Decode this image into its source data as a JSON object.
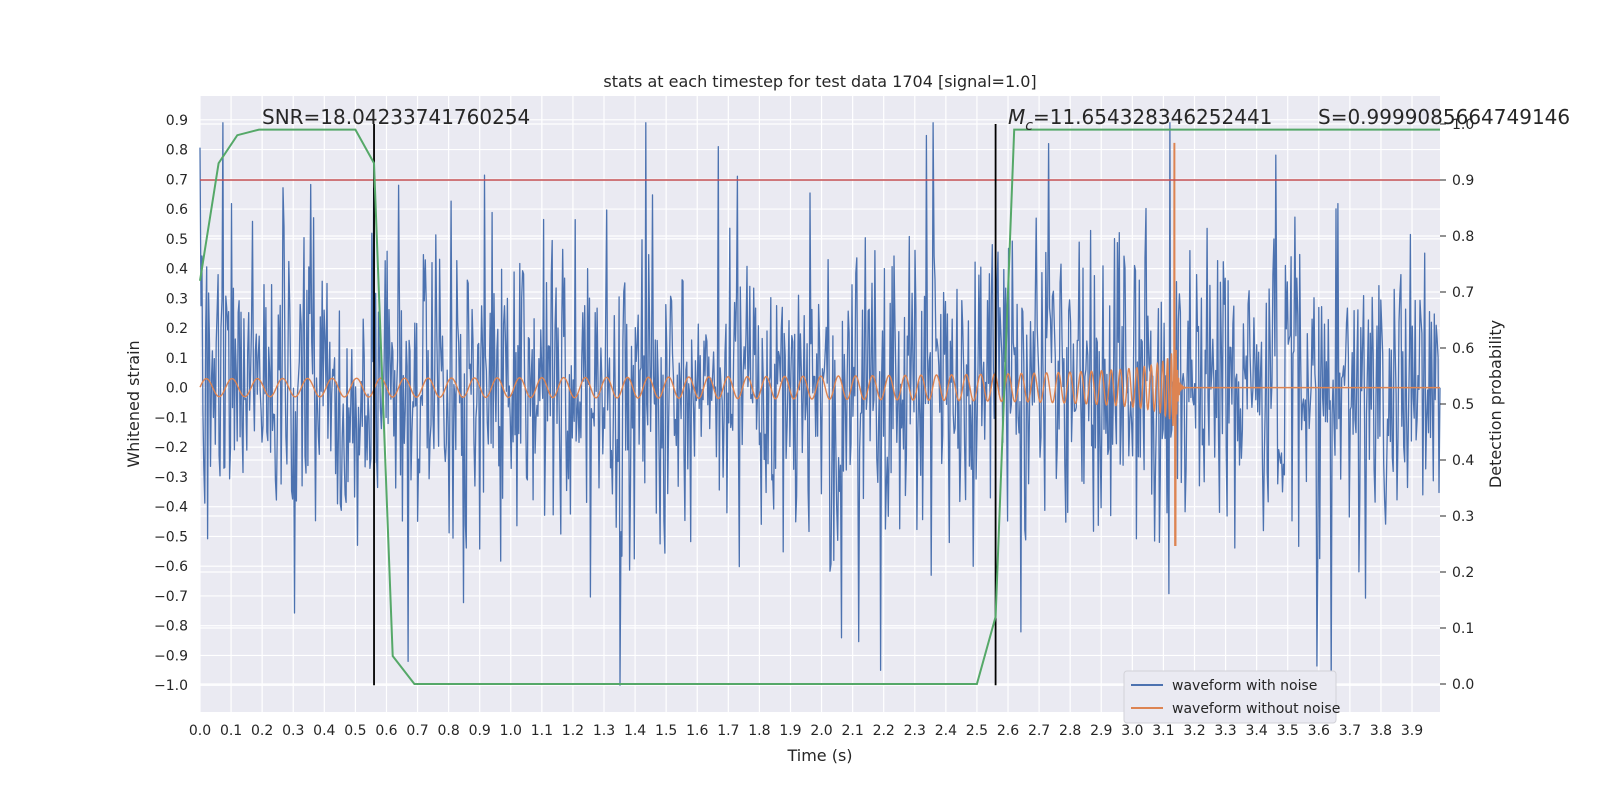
{
  "chart_data": {
    "type": "line",
    "title": "stats at each timestep for test data 1704 [signal=1.0]",
    "xlabel": "Time (s)",
    "ylabel": "Whitened strain",
    "y2label": "Detection probability",
    "xlim": [
      0.0,
      3.99
    ],
    "ylim": [
      -1.09,
      0.98
    ],
    "y2lim": [
      -0.05,
      1.05
    ],
    "x_ticks": [
      "0.0",
      "0.1",
      "0.2",
      "0.3",
      "0.4",
      "0.5",
      "0.6",
      "0.7",
      "0.8",
      "0.9",
      "1.0",
      "1.1",
      "1.2",
      "1.3",
      "1.4",
      "1.5",
      "1.6",
      "1.7",
      "1.8",
      "1.9",
      "2.0",
      "2.1",
      "2.2",
      "2.3",
      "2.4",
      "2.5",
      "2.6",
      "2.7",
      "2.8",
      "2.9",
      "3.0",
      "3.1",
      "3.2",
      "3.3",
      "3.4",
      "3.5",
      "3.6",
      "3.7",
      "3.8",
      "3.9"
    ],
    "y_ticks": [
      "0.9",
      "0.8",
      "0.7",
      "0.6",
      "0.5",
      "0.4",
      "0.3",
      "0.2",
      "0.1",
      "0.0",
      "−0.1",
      "−0.2",
      "−0.3",
      "−0.4",
      "−0.5",
      "−0.6",
      "−0.7",
      "−0.8",
      "−0.9",
      "−1.0"
    ],
    "y2_ticks": [
      "1.0",
      "0.9",
      "0.8",
      "0.7",
      "0.6",
      "0.5",
      "0.4",
      "0.3",
      "0.2",
      "0.1",
      "0.0"
    ],
    "grid": true,
    "legend_position": "lower-right",
    "series": [
      {
        "name": "waveform with noise",
        "color": "#4c72b0",
        "axis": "left",
        "description_noise_amplitude": 0.4,
        "peaks": [
          [
            0.56,
            0.67
          ],
          [
            0.64,
            0.68
          ],
          [
            1.73,
            0.71
          ],
          [
            2.73,
            0.82
          ],
          [
            3.12,
            0.89
          ],
          [
            0.67,
            -0.92
          ],
          [
            2.19,
            -0.95
          ],
          [
            3.12,
            -0.89
          ],
          [
            3.64,
            -1.0
          ]
        ]
      },
      {
        "name": "waveform without noise",
        "color": "#dd8452",
        "axis": "left",
        "chirp": {
          "start": 0.0,
          "merger": 3.14,
          "amp_start": 0.03,
          "amp_peak": 0.82,
          "amp_min": -0.53,
          "f_start": 12
        }
      },
      {
        "name": "",
        "color": "#55a868",
        "axis": "right",
        "x": [
          0.0,
          0.06,
          0.12,
          0.19,
          0.25,
          0.31,
          0.37,
          0.44,
          0.5,
          0.56,
          0.62,
          0.69,
          0.75,
          0.81,
          1.0,
          1.5,
          2.0,
          2.4,
          2.5,
          2.56,
          2.62,
          2.69,
          3.0,
          3.5,
          3.99
        ],
        "y": [
          0.72,
          0.93,
          0.98,
          0.99,
          0.99,
          0.99,
          0.99,
          0.99,
          0.99,
          0.93,
          0.05,
          0.0,
          0.0,
          0.0,
          0.0,
          0.0,
          0.0,
          0.0,
          0.0,
          0.12,
          0.99,
          0.99,
          0.99,
          0.99,
          0.99
        ]
      }
    ],
    "threshold": {
      "value": 0.9,
      "axis": "right",
      "color": "#c44e52"
    },
    "vlines": [
      0.56,
      2.56
    ],
    "annotations": {
      "snr": "SNR=18.04233741760254",
      "mc_symbol": "M",
      "mc_sub": "c",
      "mc_value": "=11.654328346252441",
      "s": "S=0.9999085664749146"
    }
  }
}
